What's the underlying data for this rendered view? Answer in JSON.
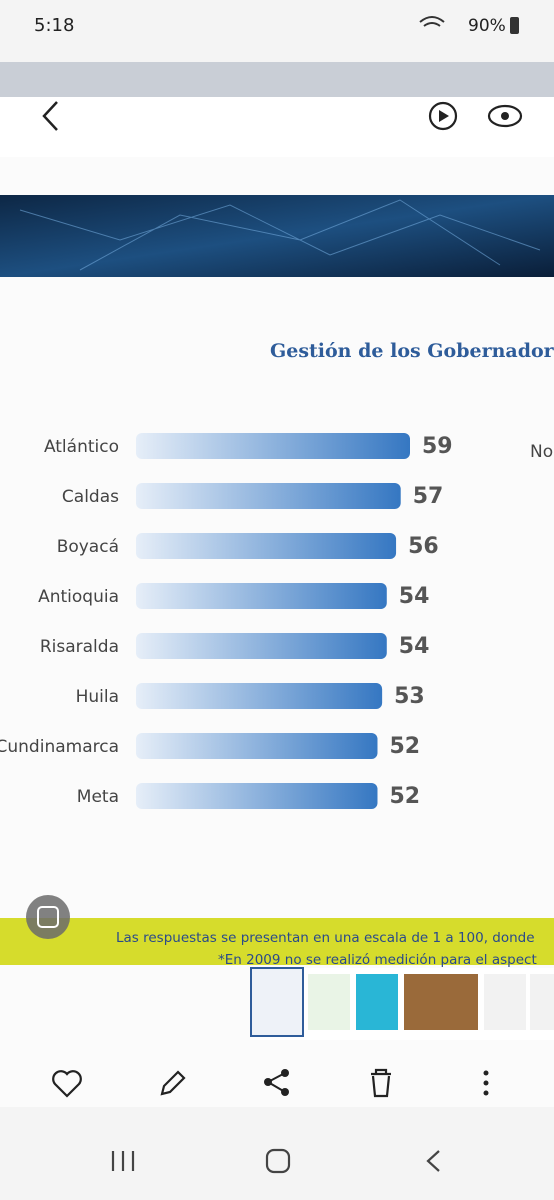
{
  "status_bar": {
    "time": "5:18",
    "battery": "90%"
  },
  "chart_data": {
    "type": "bar",
    "orientation": "horizontal",
    "title": "Gestión de los Gobernadores d",
    "categories": [
      "Atlántico",
      "Caldas",
      "Boyacá",
      "Antioquia",
      "Risaralda",
      "Huila",
      "Cundinamarca",
      "Meta"
    ],
    "values": [
      59,
      57,
      56,
      54,
      54,
      53,
      52,
      52
    ],
    "color": "#3577c2"
  },
  "partial_label": "Nor",
  "footnotes": [
    "Las respuestas se presentan en una escala de 1 a 100, donde",
    "*En 2009 no se realizó medición para el aspect"
  ]
}
